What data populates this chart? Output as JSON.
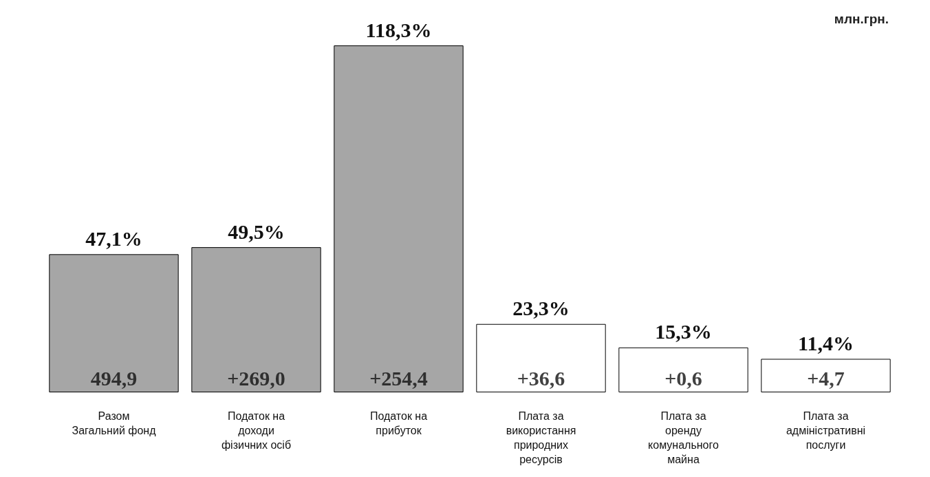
{
  "chart_data": {
    "type": "bar",
    "categories": [
      "Разом Загальний фонд",
      "Податок на доходи фізичних осіб",
      "Податок на прибуток",
      "Плата за використання природних ресурсів",
      "Плата за оренду комунального майна",
      "Плата за адміністративні послуги"
    ],
    "values": [
      47.1,
      49.5,
      118.3,
      23.3,
      15.3,
      11.4
    ],
    "colors": [
      "#a6a6a6",
      "#a6a6a6",
      "#a6a6a6",
      "#ffffff",
      "#ffffff",
      "#ffffff"
    ],
    "value_labels": [
      "47,1%",
      "49,5%",
      "118,3%",
      "23,3%",
      "15,3%",
      "11,4%"
    ],
    "annotations": [
      "млн.грн.",
      {
        "text": "494,9",
        "x": "Разом Загальний фонд",
        "y": 0
      },
      {
        "text": "+269,0",
        "x": "Податок на доходи фізичних осіб",
        "y": 0
      },
      {
        "text": "+254,4",
        "x": "Податок на прибуток",
        "y": 0
      },
      {
        "text": "+36,6",
        "x": "Плата за використання природних ресурсів",
        "y": 0
      },
      {
        "text": "+0,6",
        "x": "Плата за оренду комунального майна",
        "y": 0
      },
      {
        "text": "+4,7",
        "x": "Плата за адміністративні послуги",
        "y": 0
      }
    ],
    "grid": false
  }
}
